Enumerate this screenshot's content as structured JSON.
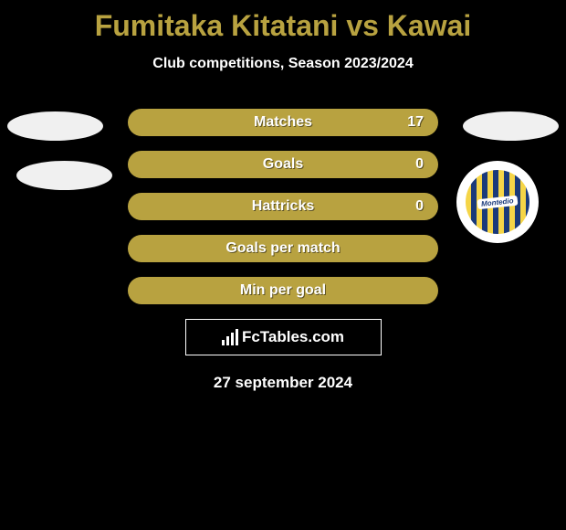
{
  "title": "Fumitaka Kitatani vs Kawai",
  "subtitle": "Club competitions, Season 2023/2024",
  "rows": [
    {
      "label": "Matches",
      "value": "17",
      "show_value": true,
      "bg": "#b8a240"
    },
    {
      "label": "Goals",
      "value": "0",
      "show_value": true,
      "bg": "#b8a240"
    },
    {
      "label": "Hattricks",
      "value": "0",
      "show_value": true,
      "bg": "#b8a240"
    },
    {
      "label": "Goals per match",
      "value": "",
      "show_value": false,
      "bg": "#b8a240"
    },
    {
      "label": "Min per goal",
      "value": "",
      "show_value": false,
      "bg": "#b8a240"
    }
  ],
  "logo_text": "FcTables.com",
  "date": "27 september 2024",
  "colors": {
    "background": "#000000",
    "title": "#b8a240",
    "text": "#ffffff",
    "ellipse": "#f0f0f0",
    "border": "#ffffff"
  },
  "badge_text": "Montedio"
}
